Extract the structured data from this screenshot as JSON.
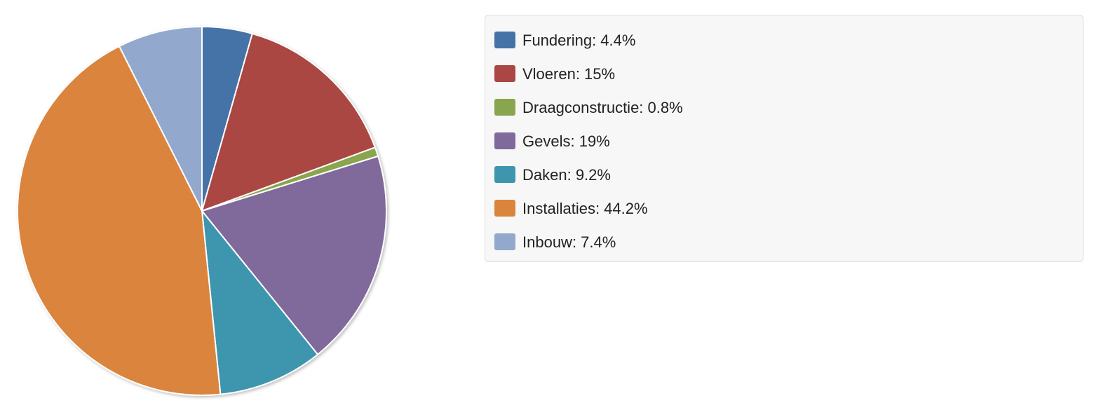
{
  "chart_data": {
    "type": "pie",
    "categories": [
      "Fundering",
      "Vloeren",
      "Draagconstructie",
      "Gevels",
      "Daken",
      "Installaties",
      "Inbouw"
    ],
    "values": [
      4.4,
      15,
      0.8,
      19,
      9.2,
      44.2,
      7.4
    ],
    "labels": [
      "Fundering: 4.4%",
      "Vloeren: 15%",
      "Draagconstructie: 0.8%",
      "Gevels: 19%",
      "Daken: 9.2%",
      "Installaties: 44.2%",
      "Inbouw: 7.4%"
    ],
    "colors": [
      "#4572a7",
      "#aa4643",
      "#89a54e",
      "#80699b",
      "#3d96ae",
      "#db843d",
      "#92a8cd"
    ],
    "start": "12 o'clock",
    "direction": "clockwise",
    "legend_position": "right"
  }
}
